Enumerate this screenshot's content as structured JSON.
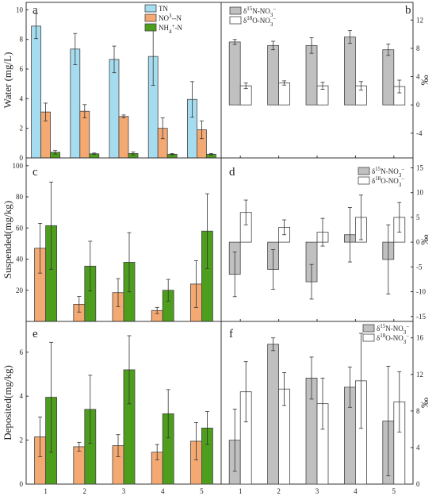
{
  "chart_data": [
    {
      "id": "a",
      "type": "bar",
      "panel_label": "a",
      "ylabel": "Water (mg/L)",
      "ylim": [
        0,
        10.5
      ],
      "yticks": [
        0,
        2,
        4,
        6,
        8,
        10
      ],
      "categories": [
        "1",
        "2",
        "3",
        "4",
        "5"
      ],
      "legend": "top-right",
      "series": [
        {
          "name": "TN",
          "legend_html": "TN",
          "color": "#a6dcef",
          "values": [
            8.9,
            7.35,
            6.65,
            6.85,
            3.95
          ],
          "errors": [
            0.85,
            1.05,
            0.9,
            1.95,
            1.2
          ]
        },
        {
          "name": "NO3--N",
          "legend_html": "NO<tspan dy='-4' font-size='7'>3</tspan><tspan dy='4'>-</tspan><tspan>-N</tspan>",
          "color": "#f4a972",
          "values": [
            3.1,
            3.15,
            2.8,
            2.0,
            1.9
          ],
          "errors": [
            0.6,
            0.45,
            0.1,
            0.7,
            0.6
          ]
        },
        {
          "name": "NH4+-N",
          "legend_html": "NH<tspan dy='4' font-size='7'>4</tspan><tspan dy='-7' font-size='7'>+</tspan><tspan dy='3'>-N</tspan>",
          "color": "#4e9e1d",
          "values": [
            0.38,
            0.28,
            0.3,
            0.25,
            0.25
          ],
          "errors": [
            0.12,
            0.05,
            0.1,
            0.05,
            0.05
          ]
        }
      ]
    },
    {
      "id": "b",
      "type": "bar",
      "panel_label": "b",
      "ylabel": "‰",
      "ylim": [
        -7.5,
        14.5
      ],
      "yticks": [
        -4,
        0,
        4,
        8,
        12
      ],
      "categories": [
        "1",
        "2",
        "3",
        "4",
        "5"
      ],
      "legend": "top-left",
      "series": [
        {
          "name": "δ15N-NO3-",
          "legend_html": "δ<tspan dy='-4' font-size='7'>15</tspan><tspan dy='4'>N-NO</tspan><tspan dy='4' font-size='7'>3</tspan><tspan dy='-7' font-size='7'>−</tspan>",
          "color": "#c0c0c0",
          "values": [
            8.9,
            8.4,
            8.4,
            9.6,
            7.8
          ],
          "errors": [
            0.35,
            0.6,
            1.1,
            0.9,
            0.8
          ]
        },
        {
          "name": "δ18O-NO3-",
          "legend_html": "δ<tspan dy='-4' font-size='7'>18</tspan><tspan dy='4'>O-NO</tspan><tspan dy='4' font-size='7'>3</tspan><tspan dy='-7' font-size='7'>−</tspan>",
          "color": "#ffffff",
          "values": [
            2.7,
            3.1,
            2.7,
            2.7,
            2.6
          ],
          "errors": [
            0.4,
            0.3,
            0.5,
            0.6,
            0.9
          ]
        }
      ]
    },
    {
      "id": "c",
      "type": "bar",
      "panel_label": "c",
      "ylabel": "Suspended(mg/kg)",
      "ylim": [
        0,
        105
      ],
      "yticks": [
        20,
        40,
        60,
        80,
        100
      ],
      "categories": [
        "1",
        "2",
        "3",
        "4",
        "5"
      ],
      "legend": "none",
      "series": [
        {
          "name": "NO3--N",
          "color": "#f4a972",
          "values": [
            47,
            11,
            18.5,
            7,
            24
          ],
          "errors": [
            16,
            5,
            9,
            2,
            15
          ]
        },
        {
          "name": "NH4+-N",
          "color": "#4e9e1d",
          "values": [
            61.5,
            35.5,
            38,
            20,
            58
          ],
          "errors": [
            28,
            16,
            19,
            7,
            24
          ]
        }
      ]
    },
    {
      "id": "d",
      "type": "bar",
      "panel_label": "d",
      "ylabel": "‰",
      "ylim": [
        -16,
        17
      ],
      "yticks": [
        -15,
        -10,
        -5,
        0,
        5,
        10,
        15
      ],
      "categories": [
        "1",
        "2",
        "3",
        "4",
        "5"
      ],
      "legend": "top-right",
      "series": [
        {
          "name": "δ15N-NO3-",
          "legend_html": "δ<tspan dy='-4' font-size='7'>15</tspan><tspan dy='4'>N-NO</tspan><tspan dy='4' font-size='7'>3</tspan><tspan dy='-7' font-size='7'>−</tspan>",
          "color": "#c0c0c0",
          "values": [
            -6.5,
            -5.5,
            -8.0,
            1.5,
            -3.5
          ],
          "errors": [
            4.5,
            4.0,
            3.5,
            5.5,
            7.0
          ]
        },
        {
          "name": "δ18O-NO3-",
          "legend_html": "δ<tspan dy='-4' font-size='7'>18</tspan><tspan dy='4'>O-NO</tspan><tspan dy='4' font-size='7'>3</tspan><tspan dy='-7' font-size='7'>−</tspan>",
          "color": "#ffffff",
          "values": [
            6.0,
            3.0,
            2.0,
            5.0,
            5.0
          ],
          "errors": [
            2.5,
            1.5,
            2.8,
            4.5,
            3.0
          ]
        }
      ]
    },
    {
      "id": "e",
      "type": "bar",
      "panel_label": "e",
      "ylabel": "Deposited(mg/kg)",
      "ylim": [
        0,
        7.4
      ],
      "yticks": [
        0,
        2,
        4,
        6
      ],
      "categories": [
        "1",
        "2",
        "3",
        "4",
        "5"
      ],
      "legend": "none",
      "series": [
        {
          "name": "NO3--N",
          "color": "#f4a972",
          "values": [
            2.15,
            1.7,
            1.75,
            1.45,
            1.95
          ],
          "errors": [
            0.9,
            0.2,
            0.5,
            0.35,
            0.85
          ]
        },
        {
          "name": "NH4+-N",
          "color": "#4e9e1d",
          "values": [
            3.95,
            3.4,
            5.2,
            3.2,
            2.55
          ],
          "errors": [
            2.5,
            1.55,
            1.55,
            1.1,
            0.75
          ]
        }
      ]
    },
    {
      "id": "f",
      "type": "bar",
      "panel_label": "f",
      "ylabel": "‰",
      "ylim": [
        0,
        17.8
      ],
      "yticks": [
        0,
        4,
        8,
        12,
        16
      ],
      "categories": [
        "1",
        "2",
        "3",
        "4",
        "5"
      ],
      "legend": "top-right",
      "series": [
        {
          "name": "δ15N-NO3-",
          "legend_html": "δ<tspan dy='-4' font-size='7'>15</tspan><tspan dy='4'>N-NO</tspan><tspan dy='4' font-size='7'>3</tspan><tspan dy='-7' font-size='7'>−</tspan>",
          "color": "#c0c0c0",
          "values": [
            4.8,
            15.3,
            11.6,
            10.6,
            6.9
          ],
          "errors": [
            3.4,
            0.7,
            2.3,
            2.2,
            6.0
          ]
        },
        {
          "name": "δ18O-NO3-",
          "legend_html": "δ<tspan dy='-4' font-size='7'>18</tspan><tspan dy='4'>O-NO</tspan><tspan dy='4' font-size='7'>3</tspan><tspan dy='-7' font-size='7'>−</tspan>",
          "color": "#ffffff",
          "values": [
            10.1,
            10.4,
            8.8,
            11.3,
            9.0
          ],
          "errors": [
            3.3,
            1.8,
            2.8,
            5.2,
            3.3
          ]
        }
      ]
    }
  ]
}
